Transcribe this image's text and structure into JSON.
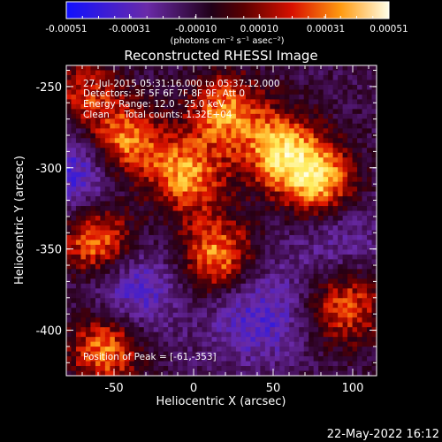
{
  "colorbar": {
    "tick_labels": [
      "-0.00051",
      "-0.00031",
      "-0.00010",
      "0.00010",
      "0.00031",
      "0.00051"
    ],
    "unit_label": "(photons cm⁻² s⁻¹ asec⁻²)",
    "range": [
      -0.00051,
      0.00051
    ]
  },
  "chart_data": {
    "type": "heatmap",
    "title": "Reconstructed RHESSI Image",
    "xlabel": "Heliocentric X (arcsec)",
    "ylabel": "Heliocentric Y (arcsec)",
    "xlim": [
      -80,
      115
    ],
    "ylim": [
      -428,
      -237
    ],
    "x_ticks": [
      "-50",
      "0",
      "50",
      "100"
    ],
    "x_tick_values": [
      -50,
      0,
      50,
      100
    ],
    "y_ticks": [
      "-250",
      "-300",
      "-350",
      "-400"
    ],
    "y_tick_values": [
      -250,
      -300,
      -350,
      -400
    ],
    "colormap": "rhessi-diverging (blue-purple-black-red-orange-yellow-white)",
    "peak_position": [
      -61,
      -353
    ],
    "sources": [
      {
        "x": -45,
        "y": -285,
        "level": 1.0
      },
      {
        "x": -60,
        "y": -345,
        "level": 1.0
      },
      {
        "x": -5,
        "y": -305,
        "level": 0.85
      },
      {
        "x": 20,
        "y": -265,
        "level": 0.8
      },
      {
        "x": 55,
        "y": -290,
        "level": 0.95
      },
      {
        "x": 80,
        "y": -310,
        "level": 1.0
      },
      {
        "x": 15,
        "y": -355,
        "level": 0.9
      },
      {
        "x": -55,
        "y": -410,
        "level": 0.9
      },
      {
        "x": 95,
        "y": -385,
        "level": 0.75
      },
      {
        "x": -70,
        "y": -255,
        "level": 0.6
      }
    ],
    "negative_regions": [
      {
        "x": -40,
        "y": -375,
        "level": -0.6
      },
      {
        "x": 40,
        "y": -390,
        "level": -0.55
      },
      {
        "x": -70,
        "y": -300,
        "level": -0.7
      },
      {
        "x": 90,
        "y": -340,
        "level": -0.4
      }
    ]
  },
  "annotations": {
    "time_range": "27-Jul-2015 05:31:16.000 to 05:37:12.000",
    "detectors": "Detectors: 3F 5F 6F 7F 8F 9F, Att 0",
    "energy_range": "Energy Range: 12.0 - 25.0 keV",
    "clean_info": "Clean     Total counts: 1.32E+04",
    "peak_position": "Position of Peak = [-61,-353]"
  },
  "footer": {
    "timestamp": "22-May-2022 16:12"
  }
}
